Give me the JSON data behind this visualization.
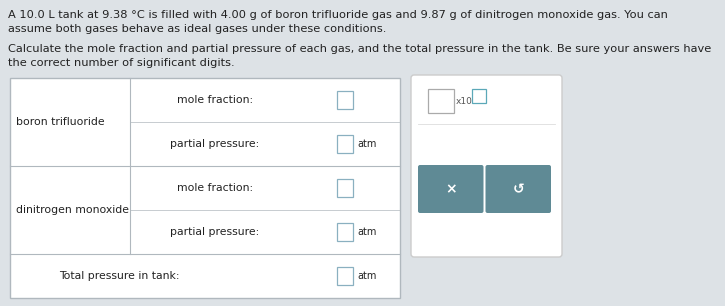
{
  "title_line1": "A 10.0 L tank at 9.38 °C is filled with 4.00 g of boron trifluoride gas and 9.87 g of dinitrogen monoxide gas. You can",
  "title_line2": "assume both gases behave as ideal gases under these conditions.",
  "subtitle_line1": "Calculate the mole fraction and partial pressure of each gas, and the total pressure in the tank. Be sure your answers have",
  "subtitle_line2": "the correct number of significant digits.",
  "row1_label": "boron trifluoride",
  "row2_label": "dinitrogen monoxide",
  "mole_fraction_label": "mole fraction:",
  "partial_pressure_label": "partial pressure:",
  "total_pressure_label": "Total pressure in tank:",
  "atm_label": "atm",
  "x10_label": "x10",
  "background_color": "#dde2e6",
  "cell_bg": "#ffffff",
  "table_border": "#b0b8be",
  "input_border": "#9ab0be",
  "button_color": "#5f8a95",
  "panel_bg": "#ffffff",
  "text_color": "#222222",
  "font_size_title": 8.2,
  "font_size_table": 7.8,
  "font_size_small": 7.0,
  "font_size_btn": 10.0
}
